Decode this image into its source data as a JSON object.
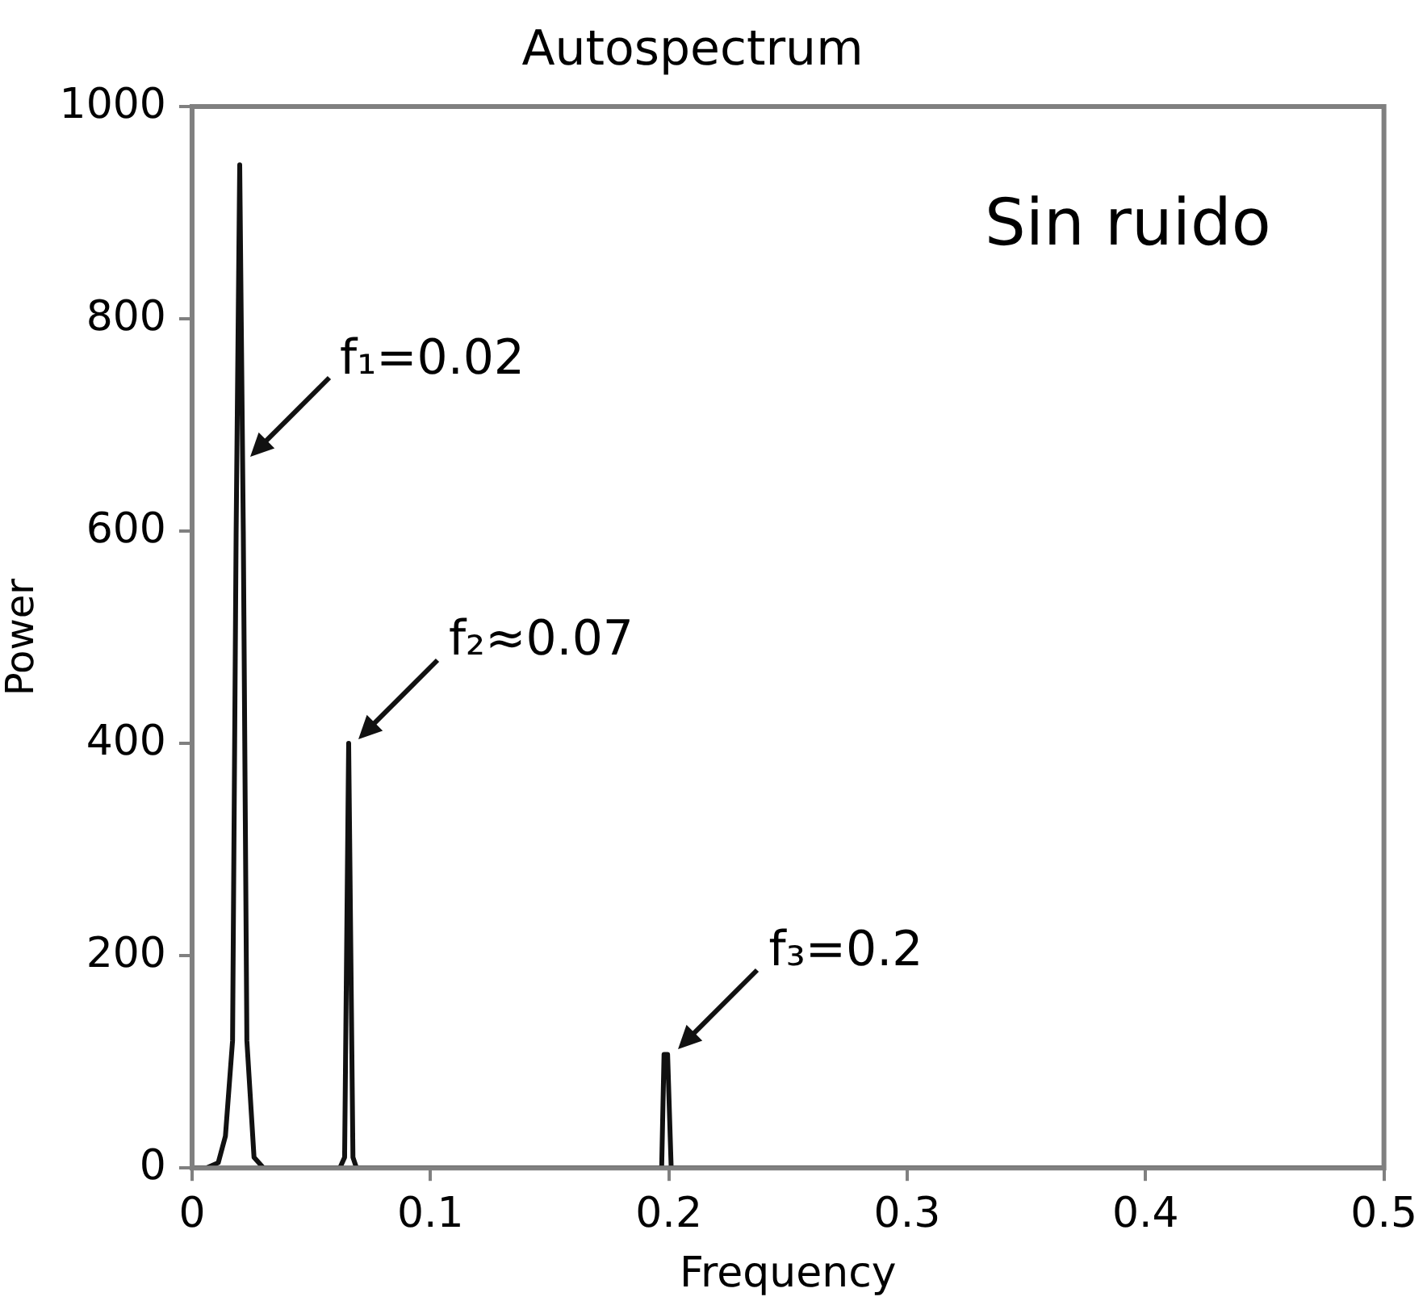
{
  "chart_data": {
    "type": "line",
    "title": "Autospectrum",
    "xlabel": "Frequency",
    "ylabel": "Power",
    "x": [
      0,
      0.006,
      0.011,
      0.014,
      0.017,
      0.0185,
      0.02,
      0.0215,
      0.023,
      0.026,
      0.03,
      0.062,
      0.064,
      0.0657,
      0.0675,
      0.069,
      0.196,
      0.197,
      0.198,
      0.1995,
      0.201,
      0.5
    ],
    "series": [
      {
        "color": "#111111",
        "values": [
          0,
          0,
          5,
          30,
          120,
          600,
          945,
          600,
          120,
          10,
          0,
          0,
          10,
          400,
          10,
          0,
          0,
          0,
          107,
          107,
          0,
          0
        ]
      }
    ],
    "xlim": [
      0,
      0.5
    ],
    "xticks": [
      0,
      0.1,
      0.2,
      0.3,
      0.4,
      0.5
    ],
    "ylim": [
      0,
      1000
    ],
    "yticks": [
      0,
      200,
      400,
      600,
      800,
      1000
    ],
    "grid": false,
    "legend": false,
    "marker": "none",
    "line_style": "solid",
    "annotations": [
      {
        "text": "f₁=0.02",
        "x": 0.02,
        "y": 665
      },
      {
        "text": "f₂≈0.07",
        "x": 0.0657,
        "y": 400
      },
      {
        "text": "f₃=0.2",
        "x": 0.2,
        "y": 107
      },
      "Sin ruido"
    ]
  }
}
